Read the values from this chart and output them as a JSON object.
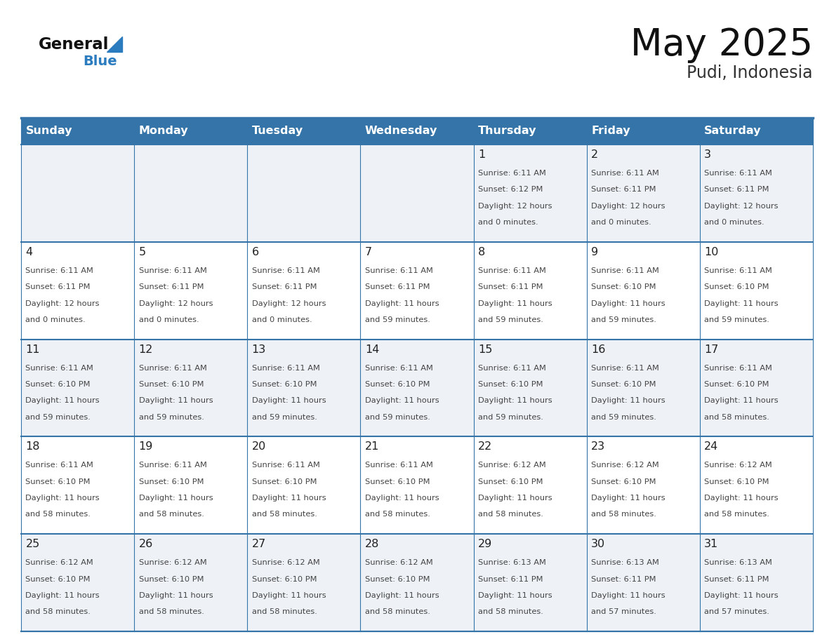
{
  "title": "May 2025",
  "subtitle": "Pudi, Indonesia",
  "days_of_week": [
    "Sunday",
    "Monday",
    "Tuesday",
    "Wednesday",
    "Thursday",
    "Friday",
    "Saturday"
  ],
  "header_bg": "#3574a8",
  "header_text": "#ffffff",
  "cell_bg_odd": "#eef2f7",
  "cell_bg_even": "#ffffff",
  "cell_border": "#3574a8",
  "day_number_color": "#222222",
  "info_text_color": "#444444",
  "title_color": "#111111",
  "subtitle_color": "#333333",
  "logo_general_color": "#111111",
  "logo_blue_color": "#2b7bbf",
  "weeks": [
    [
      null,
      null,
      null,
      null,
      {
        "day": 1,
        "sunrise": "6:11 AM",
        "sunset": "6:12 PM",
        "daylight_h": "12 hours",
        "daylight_m": "and 0 minutes."
      },
      {
        "day": 2,
        "sunrise": "6:11 AM",
        "sunset": "6:11 PM",
        "daylight_h": "12 hours",
        "daylight_m": "and 0 minutes."
      },
      {
        "day": 3,
        "sunrise": "6:11 AM",
        "sunset": "6:11 PM",
        "daylight_h": "12 hours",
        "daylight_m": "and 0 minutes."
      }
    ],
    [
      {
        "day": 4,
        "sunrise": "6:11 AM",
        "sunset": "6:11 PM",
        "daylight_h": "12 hours",
        "daylight_m": "and 0 minutes."
      },
      {
        "day": 5,
        "sunrise": "6:11 AM",
        "sunset": "6:11 PM",
        "daylight_h": "12 hours",
        "daylight_m": "and 0 minutes."
      },
      {
        "day": 6,
        "sunrise": "6:11 AM",
        "sunset": "6:11 PM",
        "daylight_h": "12 hours",
        "daylight_m": "and 0 minutes."
      },
      {
        "day": 7,
        "sunrise": "6:11 AM",
        "sunset": "6:11 PM",
        "daylight_h": "11 hours",
        "daylight_m": "and 59 minutes."
      },
      {
        "day": 8,
        "sunrise": "6:11 AM",
        "sunset": "6:11 PM",
        "daylight_h": "11 hours",
        "daylight_m": "and 59 minutes."
      },
      {
        "day": 9,
        "sunrise": "6:11 AM",
        "sunset": "6:10 PM",
        "daylight_h": "11 hours",
        "daylight_m": "and 59 minutes."
      },
      {
        "day": 10,
        "sunrise": "6:11 AM",
        "sunset": "6:10 PM",
        "daylight_h": "11 hours",
        "daylight_m": "and 59 minutes."
      }
    ],
    [
      {
        "day": 11,
        "sunrise": "6:11 AM",
        "sunset": "6:10 PM",
        "daylight_h": "11 hours",
        "daylight_m": "and 59 minutes."
      },
      {
        "day": 12,
        "sunrise": "6:11 AM",
        "sunset": "6:10 PM",
        "daylight_h": "11 hours",
        "daylight_m": "and 59 minutes."
      },
      {
        "day": 13,
        "sunrise": "6:11 AM",
        "sunset": "6:10 PM",
        "daylight_h": "11 hours",
        "daylight_m": "and 59 minutes."
      },
      {
        "day": 14,
        "sunrise": "6:11 AM",
        "sunset": "6:10 PM",
        "daylight_h": "11 hours",
        "daylight_m": "and 59 minutes."
      },
      {
        "day": 15,
        "sunrise": "6:11 AM",
        "sunset": "6:10 PM",
        "daylight_h": "11 hours",
        "daylight_m": "and 59 minutes."
      },
      {
        "day": 16,
        "sunrise": "6:11 AM",
        "sunset": "6:10 PM",
        "daylight_h": "11 hours",
        "daylight_m": "and 59 minutes."
      },
      {
        "day": 17,
        "sunrise": "6:11 AM",
        "sunset": "6:10 PM",
        "daylight_h": "11 hours",
        "daylight_m": "and 58 minutes."
      }
    ],
    [
      {
        "day": 18,
        "sunrise": "6:11 AM",
        "sunset": "6:10 PM",
        "daylight_h": "11 hours",
        "daylight_m": "and 58 minutes."
      },
      {
        "day": 19,
        "sunrise": "6:11 AM",
        "sunset": "6:10 PM",
        "daylight_h": "11 hours",
        "daylight_m": "and 58 minutes."
      },
      {
        "day": 20,
        "sunrise": "6:11 AM",
        "sunset": "6:10 PM",
        "daylight_h": "11 hours",
        "daylight_m": "and 58 minutes."
      },
      {
        "day": 21,
        "sunrise": "6:11 AM",
        "sunset": "6:10 PM",
        "daylight_h": "11 hours",
        "daylight_m": "and 58 minutes."
      },
      {
        "day": 22,
        "sunrise": "6:12 AM",
        "sunset": "6:10 PM",
        "daylight_h": "11 hours",
        "daylight_m": "and 58 minutes."
      },
      {
        "day": 23,
        "sunrise": "6:12 AM",
        "sunset": "6:10 PM",
        "daylight_h": "11 hours",
        "daylight_m": "and 58 minutes."
      },
      {
        "day": 24,
        "sunrise": "6:12 AM",
        "sunset": "6:10 PM",
        "daylight_h": "11 hours",
        "daylight_m": "and 58 minutes."
      }
    ],
    [
      {
        "day": 25,
        "sunrise": "6:12 AM",
        "sunset": "6:10 PM",
        "daylight_h": "11 hours",
        "daylight_m": "and 58 minutes."
      },
      {
        "day": 26,
        "sunrise": "6:12 AM",
        "sunset": "6:10 PM",
        "daylight_h": "11 hours",
        "daylight_m": "and 58 minutes."
      },
      {
        "day": 27,
        "sunrise": "6:12 AM",
        "sunset": "6:10 PM",
        "daylight_h": "11 hours",
        "daylight_m": "and 58 minutes."
      },
      {
        "day": 28,
        "sunrise": "6:12 AM",
        "sunset": "6:10 PM",
        "daylight_h": "11 hours",
        "daylight_m": "and 58 minutes."
      },
      {
        "day": 29,
        "sunrise": "6:13 AM",
        "sunset": "6:11 PM",
        "daylight_h": "11 hours",
        "daylight_m": "and 58 minutes."
      },
      {
        "day": 30,
        "sunrise": "6:13 AM",
        "sunset": "6:11 PM",
        "daylight_h": "11 hours",
        "daylight_m": "and 57 minutes."
      },
      {
        "day": 31,
        "sunrise": "6:13 AM",
        "sunset": "6:11 PM",
        "daylight_h": "11 hours",
        "daylight_m": "and 57 minutes."
      }
    ]
  ]
}
